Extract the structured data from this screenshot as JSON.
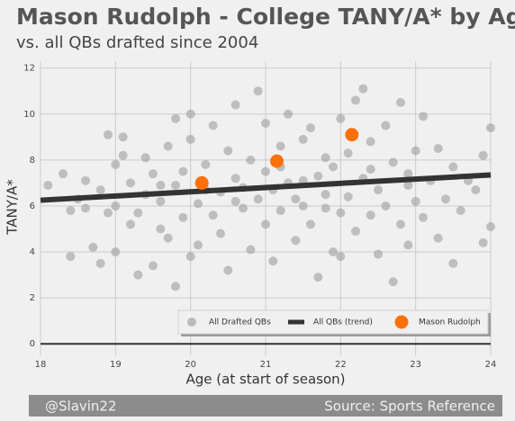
{
  "chart_data": {
    "type": "scatter",
    "title": "Mason Rudolph - College TANY/A* by Age",
    "subtitle": "vs. all QBs drafted since 2004",
    "x_label": "Age (at start of season)",
    "y_label": "TANY/A*",
    "credit": "@Slavin22",
    "source": "Source: Sports Reference",
    "xlim": [
      18,
      24
    ],
    "xticks": [
      18,
      19,
      20,
      21,
      22,
      23,
      24
    ],
    "ylim": [
      -0.5,
      12.3
    ],
    "yticks": [
      0,
      2,
      4,
      6,
      8,
      10,
      12
    ],
    "grid": true,
    "legend": "lower right",
    "series": [
      {
        "name": "All Drafted QBs",
        "color": "#a3a3a3",
        "style": "points",
        "x": [
          18.1,
          18.3,
          18.4,
          18.4,
          18.5,
          18.6,
          18.6,
          18.7,
          18.8,
          18.8,
          18.9,
          18.9,
          19.0,
          19.0,
          19.0,
          19.1,
          19.1,
          19.2,
          19.2,
          19.3,
          19.3,
          19.4,
          19.4,
          19.5,
          19.5,
          19.6,
          19.6,
          19.7,
          19.7,
          19.8,
          19.8,
          19.8,
          19.9,
          19.9,
          20.0,
          20.0,
          20.0,
          20.1,
          20.1,
          20.2,
          20.3,
          20.3,
          20.4,
          20.4,
          20.5,
          20.5,
          20.6,
          20.6,
          20.7,
          20.7,
          20.8,
          20.8,
          20.9,
          20.9,
          21.0,
          21.0,
          21.0,
          21.1,
          21.1,
          21.2,
          21.2,
          21.3,
          21.3,
          21.4,
          21.4,
          21.5,
          21.5,
          21.6,
          21.6,
          21.7,
          21.7,
          21.8,
          21.8,
          21.9,
          21.9,
          22.0,
          22.0,
          22.0,
          22.1,
          22.1,
          22.2,
          22.2,
          22.3,
          22.3,
          22.4,
          22.4,
          22.5,
          22.5,
          22.6,
          22.6,
          22.7,
          22.7,
          22.8,
          22.8,
          22.9,
          22.9,
          23.0,
          23.0,
          23.1,
          23.1,
          23.2,
          23.3,
          23.3,
          23.4,
          23.5,
          23.5,
          23.6,
          23.7,
          23.8,
          23.9,
          23.9,
          24.0,
          24.0,
          21.2,
          20.6,
          22.4,
          21.8,
          20.2,
          22.9,
          19.6,
          21.5
        ],
        "values": [
          6.9,
          7.4,
          3.8,
          5.8,
          6.3,
          7.1,
          5.9,
          4.2,
          6.7,
          3.5,
          9.1,
          5.7,
          4.0,
          7.8,
          6.0,
          9.0,
          8.2,
          5.2,
          7.0,
          3.0,
          5.7,
          6.5,
          8.1,
          3.4,
          7.4,
          5.0,
          6.2,
          8.6,
          4.6,
          2.5,
          6.9,
          9.8,
          7.5,
          5.5,
          3.8,
          8.9,
          10.0,
          6.1,
          4.3,
          7.8,
          5.6,
          9.5,
          6.6,
          4.8,
          8.4,
          3.2,
          7.2,
          10.4,
          5.9,
          6.8,
          8.0,
          4.1,
          11.0,
          6.3,
          7.5,
          5.2,
          9.6,
          3.6,
          6.7,
          8.6,
          5.8,
          7.0,
          10.0,
          4.5,
          6.3,
          8.9,
          6.0,
          9.4,
          5.2,
          7.3,
          2.9,
          8.1,
          6.5,
          4.0,
          7.7,
          9.8,
          5.7,
          3.8,
          8.3,
          6.4,
          10.6,
          4.9,
          7.2,
          11.1,
          5.6,
          8.8,
          6.7,
          3.9,
          9.5,
          6.0,
          7.9,
          2.7,
          5.2,
          10.5,
          6.9,
          4.3,
          8.4,
          6.2,
          5.5,
          9.9,
          7.1,
          4.6,
          8.5,
          6.3,
          7.7,
          3.5,
          5.8,
          7.1,
          6.7,
          4.4,
          8.2,
          9.4,
          5.1,
          7.7,
          6.2,
          7.6,
          5.9,
          6.7,
          7.4,
          6.9,
          7.1
        ]
      },
      {
        "name": "All QBs (trend)",
        "color": "#333333",
        "style": "line",
        "x": [
          18,
          24
        ],
        "values": [
          6.25,
          7.35
        ]
      },
      {
        "name": "Mason Rudolph",
        "color": "#ff700a",
        "style": "points",
        "x": [
          20.15,
          21.15,
          22.15
        ],
        "values": [
          7.0,
          7.95,
          9.1
        ]
      }
    ]
  }
}
